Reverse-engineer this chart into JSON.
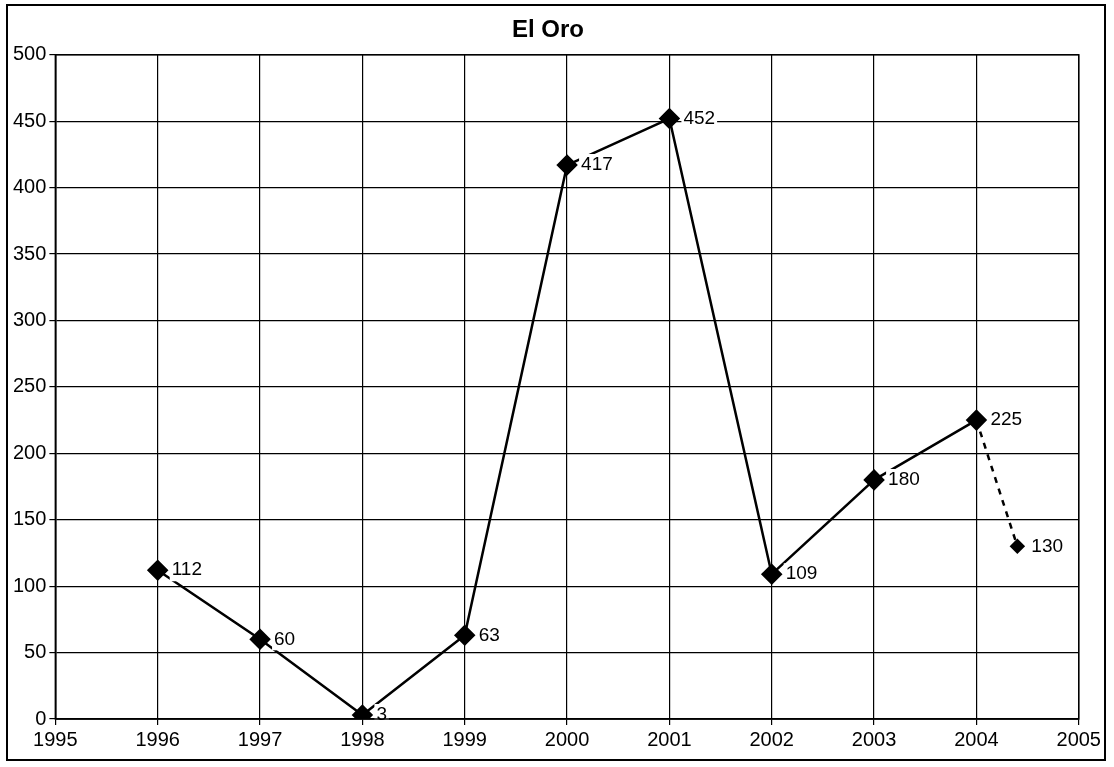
{
  "chart_data": {
    "type": "line",
    "title": "El Oro",
    "xlim": [
      1995,
      2005
    ],
    "xticks": [
      1995,
      1996,
      1997,
      1998,
      1999,
      2000,
      2001,
      2002,
      2003,
      2004,
      2005
    ],
    "ylim": [
      0,
      500
    ],
    "yticks": [
      0,
      50,
      100,
      150,
      200,
      250,
      300,
      350,
      400,
      450,
      500
    ],
    "grid": true,
    "marker": "diamond",
    "series": [
      {
        "color": "#000000",
        "line_style": "solid",
        "x": [
          1996,
          1997,
          1998,
          1999,
          2000,
          2001,
          2002,
          2003,
          2004
        ],
        "values": [
          112,
          60,
          3,
          63,
          417,
          452,
          109,
          180,
          225
        ],
        "value_labels": [
          "112",
          "60",
          "3",
          "63",
          "417",
          "452",
          "109",
          "180",
          "225"
        ]
      },
      {
        "color": "#000000",
        "line_style": "dashed",
        "x": [
          2004,
          2004.4
        ],
        "values": [
          225,
          130
        ],
        "value_labels": [
          null,
          "130"
        ]
      }
    ]
  }
}
